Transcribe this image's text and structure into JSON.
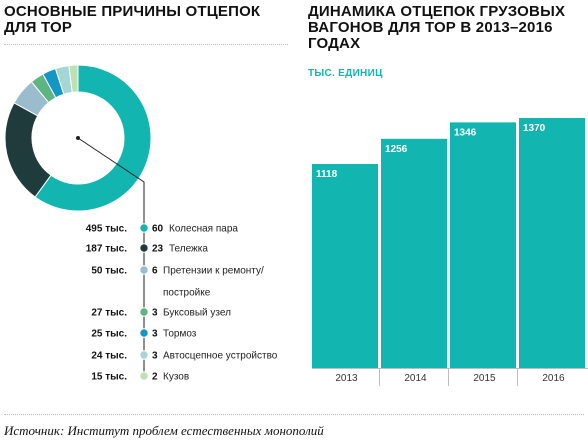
{
  "left_title": "ОСНОВНЫЕ ПРИЧИНЫ ОТЦЕПОК ДЛЯ ТОР",
  "right_title": "ДИНАМИКА ОТЦЕПОК ГРУЗОВЫХ ВАГОНОВ ДЛЯ ТОР В 2013–2016 ГОДАХ",
  "source": "Источник: Институт проблем естественных монополий",
  "chart_data": [
    {
      "type": "pie",
      "title": "ОСНОВНЫЕ ПРИЧИНЫ ОТЦЕПОК ДЛЯ ТОР",
      "slices": [
        {
          "amount": "495 тыс.",
          "percent": 60,
          "label": "Колесная пара",
          "label_lines": [
            "Колесная пара"
          ],
          "color": "#13b5b1"
        },
        {
          "amount": "187 тыс.",
          "percent": 23,
          "label": "Тележка",
          "label_lines": [
            "Тележка"
          ],
          "color": "#1f3b3c"
        },
        {
          "amount": "50 тыс.",
          "percent": 6,
          "label": "Претензии к ремонту/ постройке",
          "label_lines": [
            "Претензии к ремонту/",
            "постройке"
          ],
          "color": "#9bbccc"
        },
        {
          "amount": "27 тыс.",
          "percent": 3,
          "label": "Буксовый узел",
          "label_lines": [
            "Буксовый узел"
          ],
          "color": "#5db682"
        },
        {
          "amount": "25 тыс.",
          "percent": 3,
          "label": "Тормоз",
          "label_lines": [
            "Тормоз"
          ],
          "color": "#1596c4"
        },
        {
          "amount": "24 тыс.",
          "percent": 3,
          "label": "Автосцепное устройство",
          "label_lines": [
            "Автосцепное устройство"
          ],
          "color": "#a4d6d4"
        },
        {
          "amount": "15 тыс.",
          "percent": 2,
          "label": "Кузов",
          "label_lines": [
            "Кузов"
          ],
          "color": "#bfe0b4"
        }
      ]
    },
    {
      "type": "bar",
      "title": "ДИНАМИКА ОТЦЕПОК ГРУЗОВЫХ ВАГОНОВ ДЛЯ ТОР В 2013–2016 ГОДАХ",
      "ylabel": "ТЫС. ЕДИНИЦ",
      "categories": [
        "2013",
        "2014",
        "2015",
        "2016"
      ],
      "values": [
        1118,
        1256,
        1346,
        1370
      ],
      "ylim": [
        0,
        1370
      ],
      "color": "#13b5b1",
      "grid": false
    }
  ]
}
